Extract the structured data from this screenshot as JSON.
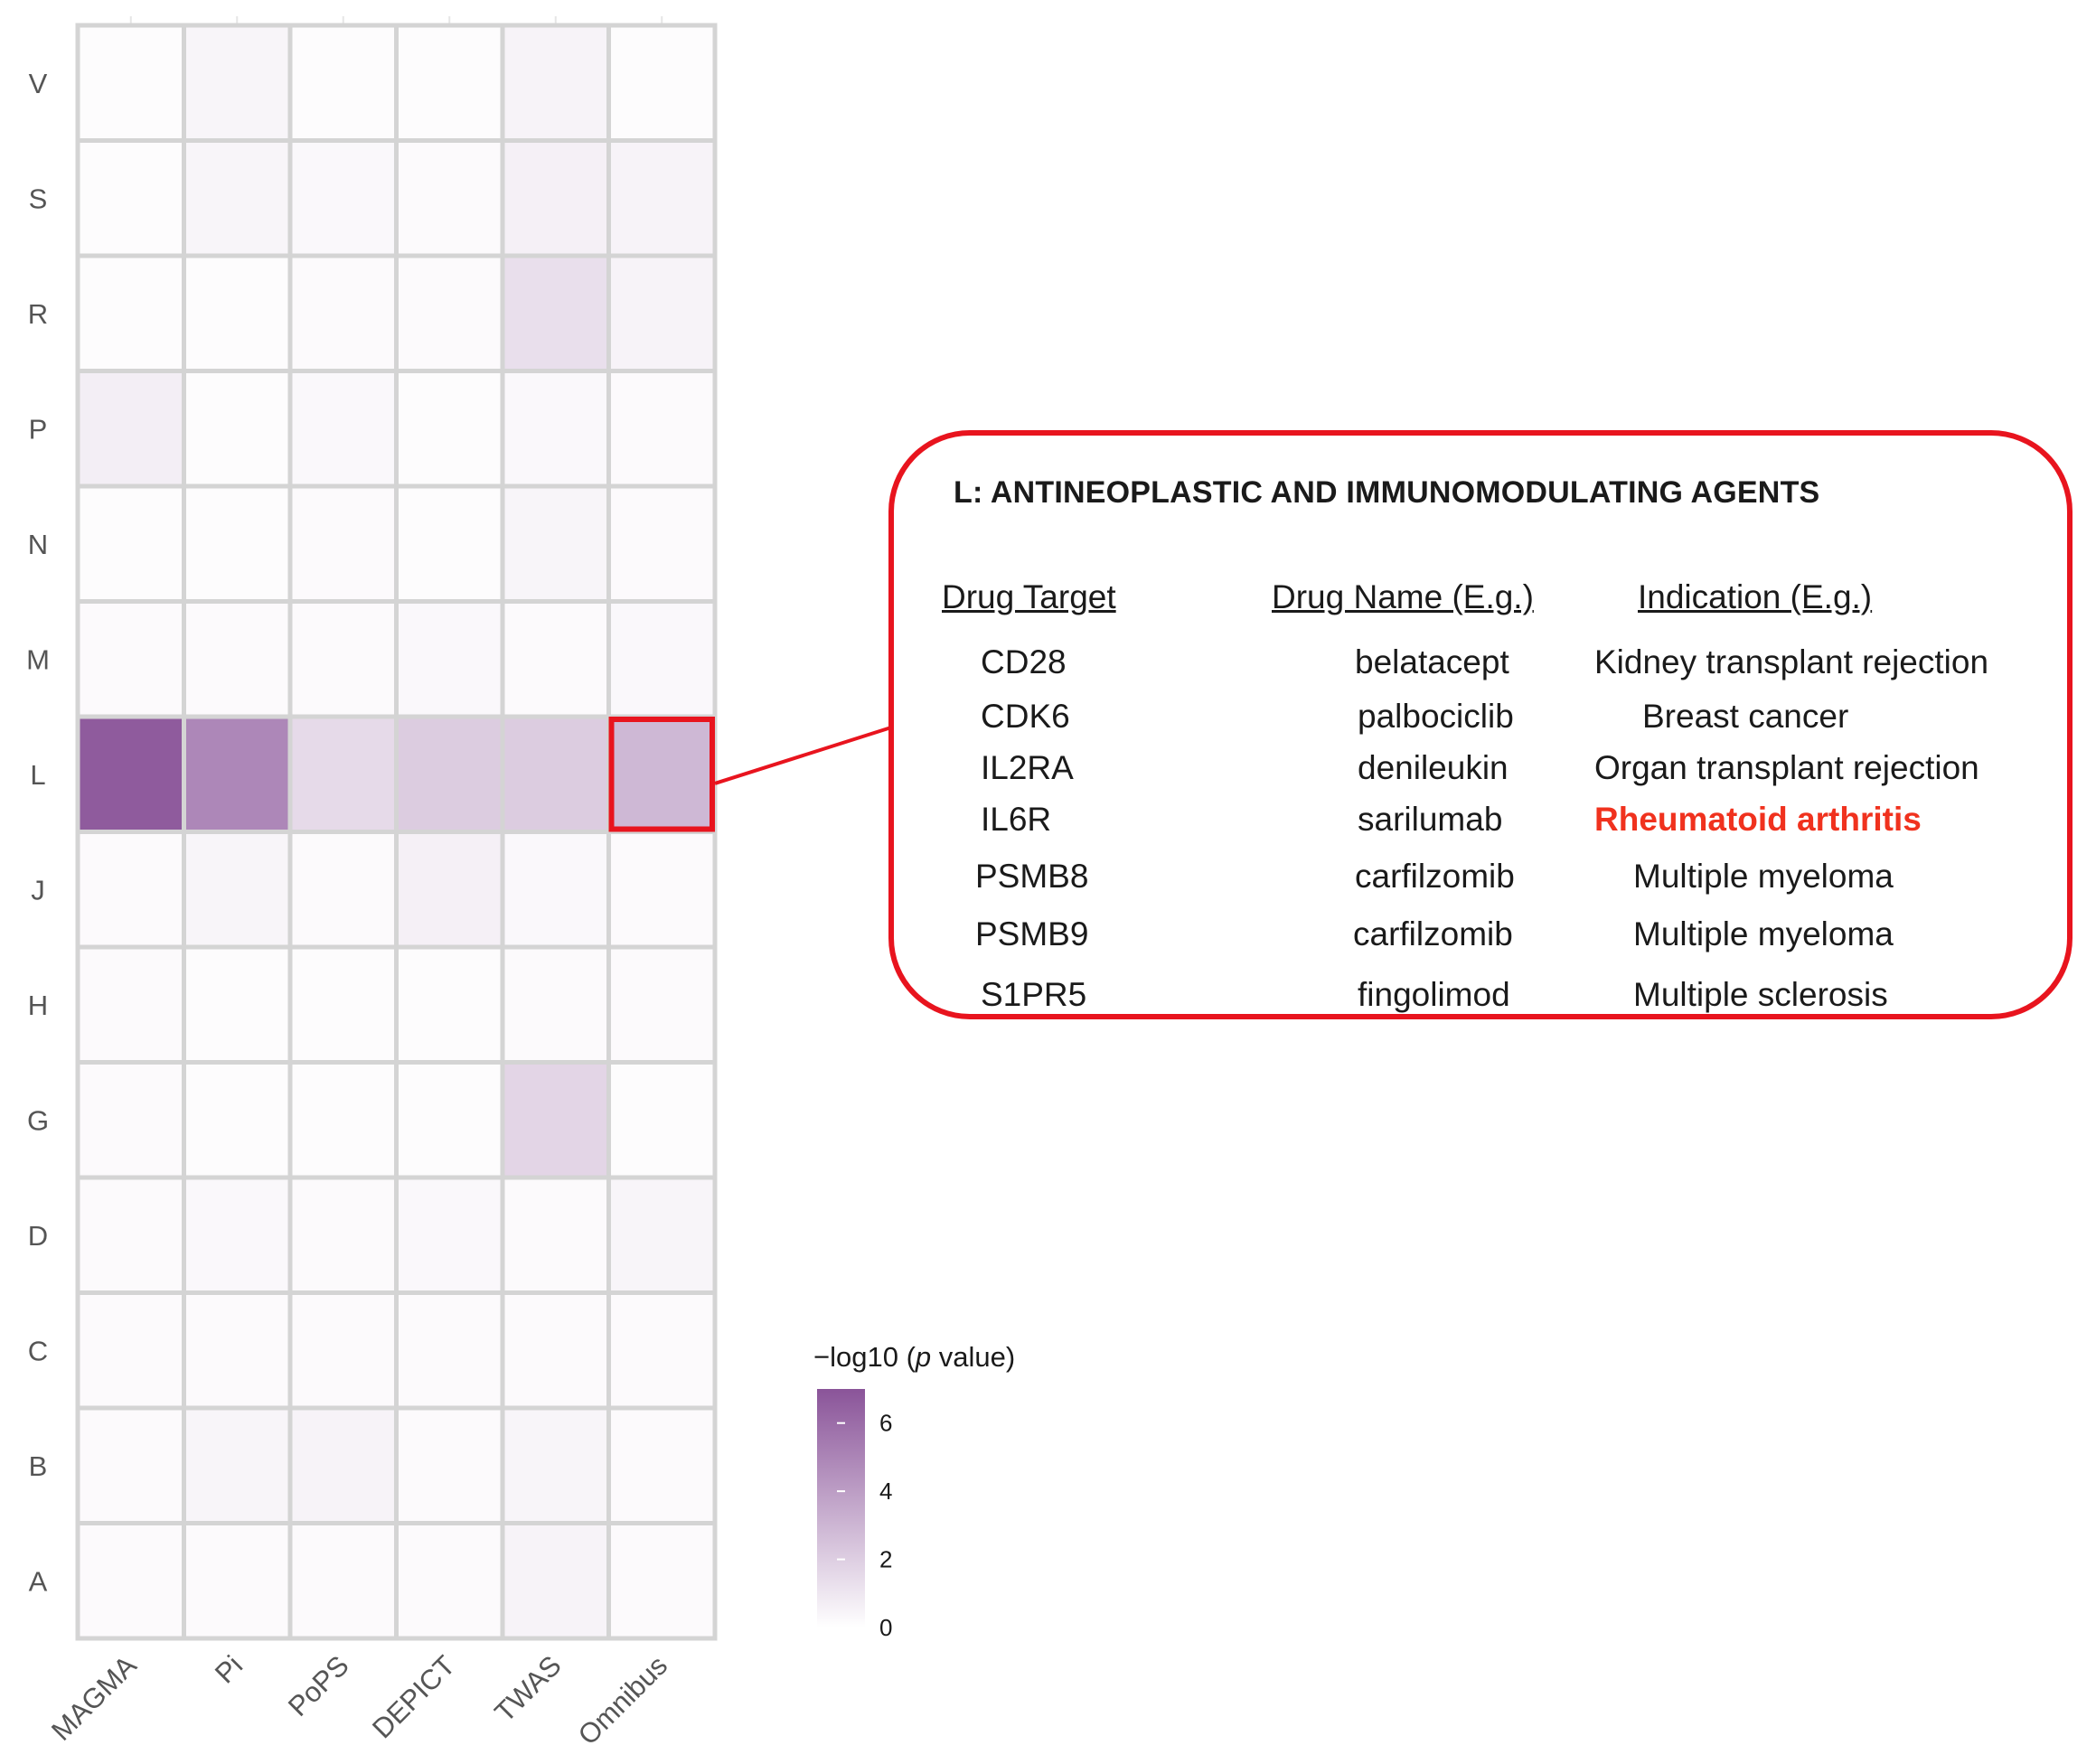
{
  "chart_data": {
    "type": "heatmap",
    "title": "",
    "xlabel": "",
    "ylabel": "",
    "x_categories": [
      "MAGMA",
      "Pi",
      "PoPS",
      "DEPICT",
      "TWAS",
      "Omnibus"
    ],
    "y_categories": [
      "V",
      "S",
      "R",
      "P",
      "N",
      "M",
      "L",
      "J",
      "H",
      "G",
      "D",
      "C",
      "B",
      "A"
    ],
    "values": [
      [
        0.0,
        0.3,
        0.0,
        0.0,
        0.4,
        0.0
      ],
      [
        0.0,
        0.3,
        0.2,
        0.1,
        0.5,
        0.4
      ],
      [
        0.0,
        0.0,
        0.1,
        0.1,
        1.2,
        0.4
      ],
      [
        0.6,
        0.0,
        0.2,
        0.0,
        0.2,
        0.1
      ],
      [
        0.0,
        0.0,
        0.1,
        0.0,
        0.3,
        0.1
      ],
      [
        0.1,
        0.1,
        0.1,
        0.2,
        0.1,
        0.2
      ],
      [
        6.6,
        4.8,
        1.4,
        2.0,
        2.0,
        2.8
      ],
      [
        0.1,
        0.3,
        0.1,
        0.5,
        0.2,
        0.1
      ],
      [
        0.1,
        0.0,
        0.0,
        0.0,
        0.1,
        0.1
      ],
      [
        0.1,
        0.0,
        0.0,
        0.0,
        1.6,
        0.0
      ],
      [
        0.1,
        0.2,
        0.1,
        0.2,
        0.1,
        0.3
      ],
      [
        0.1,
        0.1,
        0.1,
        0.1,
        0.1,
        0.1
      ],
      [
        0.1,
        0.3,
        0.4,
        0.1,
        0.3,
        0.1
      ],
      [
        0.1,
        0.1,
        0.1,
        0.1,
        0.4,
        0.1
      ]
    ],
    "highlighted_cell": {
      "row": "L",
      "col": "Omnibus"
    },
    "colorbar": {
      "title_prefix": "−log10 (",
      "title_italic": "p",
      "title_suffix": " value)",
      "ticks": [
        0,
        2,
        4,
        6
      ],
      "range": [
        0,
        7
      ],
      "color_low": "#ffffff",
      "color_high": "#8a5499"
    },
    "grid": false,
    "legend_position": "right"
  },
  "annotation": {
    "title": "L: ANTINEOPLASTIC AND IMMUNOMODULATING AGENTS",
    "headers": {
      "target": "Drug Target",
      "name": "Drug Name (E.g.)",
      "indication": "Indication (E.g.)"
    },
    "rows": [
      {
        "target": "CD28",
        "name": "belatacept",
        "indication": "Kidney transplant rejection",
        "highlight": false
      },
      {
        "target": "CDK6",
        "name": "palbociclib",
        "indication": "Breast cancer",
        "highlight": false
      },
      {
        "target": "IL2RA",
        "name": "denileukin",
        "indication": "Organ transplant rejection",
        "highlight": false
      },
      {
        "target": "IL6R",
        "name": "sarilumab",
        "indication": "Rheumatoid arthritis",
        "highlight": true
      },
      {
        "target": "PSMB8",
        "name": "carfilzomib",
        "indication": "Multiple myeloma",
        "highlight": false
      },
      {
        "target": "PSMB9",
        "name": "carfilzomib",
        "indication": "Multiple myeloma",
        "highlight": false
      },
      {
        "target": "S1PR5",
        "name": "fingolimod",
        "indication": "Multiple sclerosis",
        "highlight": false
      }
    ],
    "border_color": "#e8141e",
    "highlight_color": "#f0321e"
  }
}
